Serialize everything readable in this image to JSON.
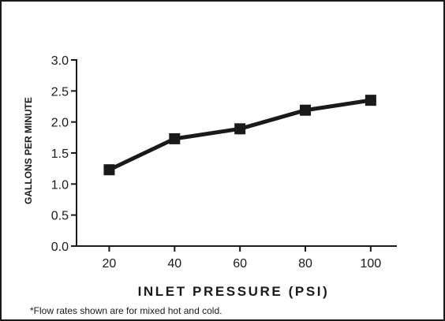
{
  "chart_data": {
    "type": "line",
    "x": [
      20,
      40,
      60,
      80,
      100
    ],
    "series": [
      {
        "values": [
          1.23,
          1.73,
          1.89,
          2.19,
          2.35
        ]
      }
    ],
    "xlabel": "INLET PRESSURE (PSI)",
    "ylabel": "GALLONS PER MINUTE",
    "xlim": [
      10,
      108
    ],
    "ylim": [
      0,
      3.0
    ],
    "yticks": [
      "0.0",
      "0.5",
      "1.0",
      "1.5",
      "2.0",
      "2.5",
      "3.0"
    ],
    "xticks": [
      "20",
      "40",
      "60",
      "80",
      "100"
    ],
    "grid": false,
    "marker": "square",
    "line_color": "#1a1a1a"
  },
  "footnote": "*Flow rates shown are for mixed hot and cold."
}
